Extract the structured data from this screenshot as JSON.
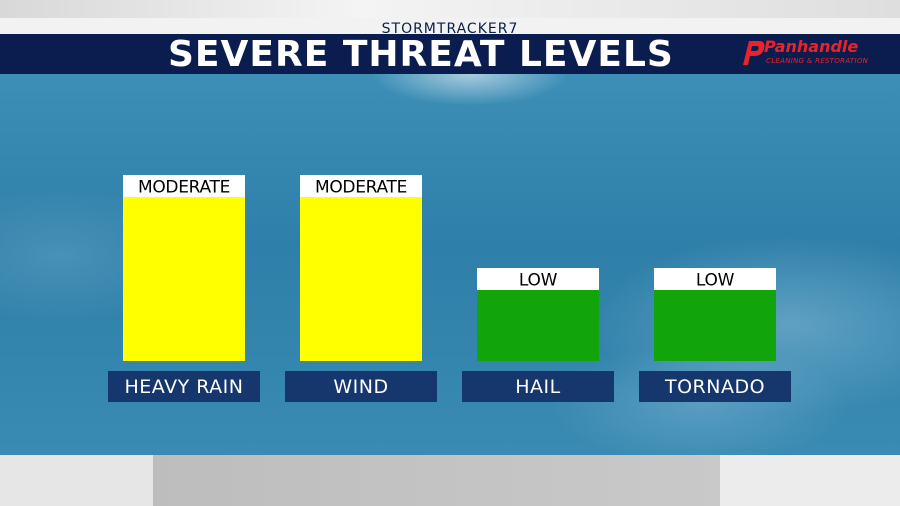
{
  "header": {
    "brand": "STORMTRACKER7",
    "title": "SEVERE THREAT LEVELS",
    "sponsor": {
      "name": "Panhandle",
      "tagline": "CLEANING & RESTORATION"
    }
  },
  "colors": {
    "moderate": "#ffff00",
    "low": "#12a50b",
    "label_box": "#15376d",
    "title_bar": "#0b1d4e",
    "sponsor_red": "#e8232b"
  },
  "chart_data": {
    "type": "bar",
    "categories": [
      "HEAVY RAIN",
      "WIND",
      "HAIL",
      "TORNADO"
    ],
    "levels": [
      "MODERATE",
      "MODERATE",
      "LOW",
      "LOW"
    ],
    "values": [
      2,
      2,
      1,
      1
    ],
    "ylim": [
      0,
      2
    ],
    "grid": false,
    "legend": "none"
  }
}
